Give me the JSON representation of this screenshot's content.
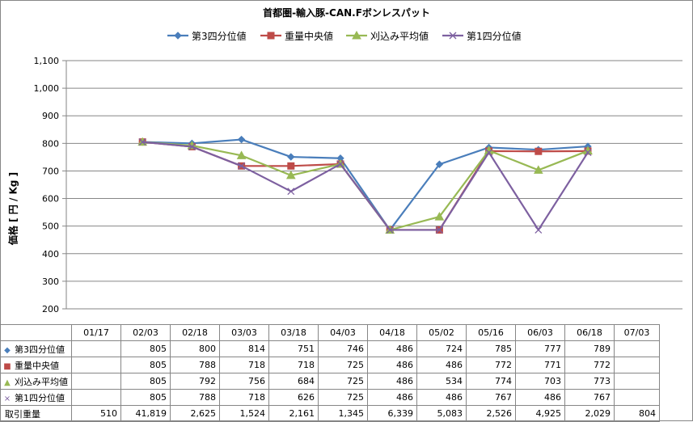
{
  "chart_data": {
    "type": "line",
    "title": "首都圏-輸入豚-CAN.Fボンレスパット",
    "ylabel": "価格 [ 円 / Kg ]",
    "ylim": [
      200,
      1100
    ],
    "yticks": [
      "200",
      "300",
      "400",
      "500",
      "600",
      "700",
      "800",
      "900",
      "1,000",
      "1,100"
    ],
    "ytick_values": [
      200,
      300,
      400,
      500,
      600,
      700,
      800,
      900,
      1000,
      1100
    ],
    "grid": true,
    "legend_position": "top",
    "categories": [
      "01/17",
      "02/03",
      "02/18",
      "03/03",
      "03/18",
      "04/03",
      "04/18",
      "05/02",
      "05/16",
      "06/03",
      "06/18",
      "07/03"
    ],
    "series": [
      {
        "name": "第3四分位値",
        "color": "#4a7ebb",
        "marker": "diamond",
        "marker_glyph": "◆",
        "values": [
          null,
          805,
          800,
          814,
          751,
          746,
          486,
          724,
          785,
          777,
          789,
          null
        ]
      },
      {
        "name": "重量中央値",
        "color": "#be4b48",
        "marker": "square",
        "marker_glyph": "■",
        "values": [
          null,
          805,
          788,
          718,
          718,
          725,
          486,
          486,
          772,
          771,
          772,
          null
        ]
      },
      {
        "name": "刈込み平均値",
        "color": "#98b954",
        "marker": "triangle",
        "marker_glyph": "▲",
        "values": [
          null,
          805,
          792,
          756,
          684,
          725,
          486,
          534,
          774,
          703,
          773,
          null
        ]
      },
      {
        "name": "第1四分位値",
        "color": "#7d60a0",
        "marker": "x",
        "marker_glyph": "×",
        "values": [
          null,
          805,
          788,
          718,
          626,
          725,
          486,
          486,
          767,
          486,
          767,
          null
        ]
      }
    ],
    "table": {
      "volume_label": "取引重量",
      "series_rows": [
        [
          "",
          "805",
          "800",
          "814",
          "751",
          "746",
          "486",
          "724",
          "785",
          "777",
          "789",
          ""
        ],
        [
          "",
          "805",
          "788",
          "718",
          "718",
          "725",
          "486",
          "486",
          "772",
          "771",
          "772",
          ""
        ],
        [
          "",
          "805",
          "792",
          "756",
          "684",
          "725",
          "486",
          "534",
          "774",
          "703",
          "773",
          ""
        ],
        [
          "",
          "805",
          "788",
          "718",
          "626",
          "725",
          "486",
          "486",
          "767",
          "486",
          "767",
          ""
        ]
      ],
      "volume": [
        "510",
        "41,819",
        "2,625",
        "1,524",
        "2,161",
        "1,345",
        "6,339",
        "5,083",
        "2,526",
        "4,925",
        "2,029",
        "804"
      ]
    }
  }
}
